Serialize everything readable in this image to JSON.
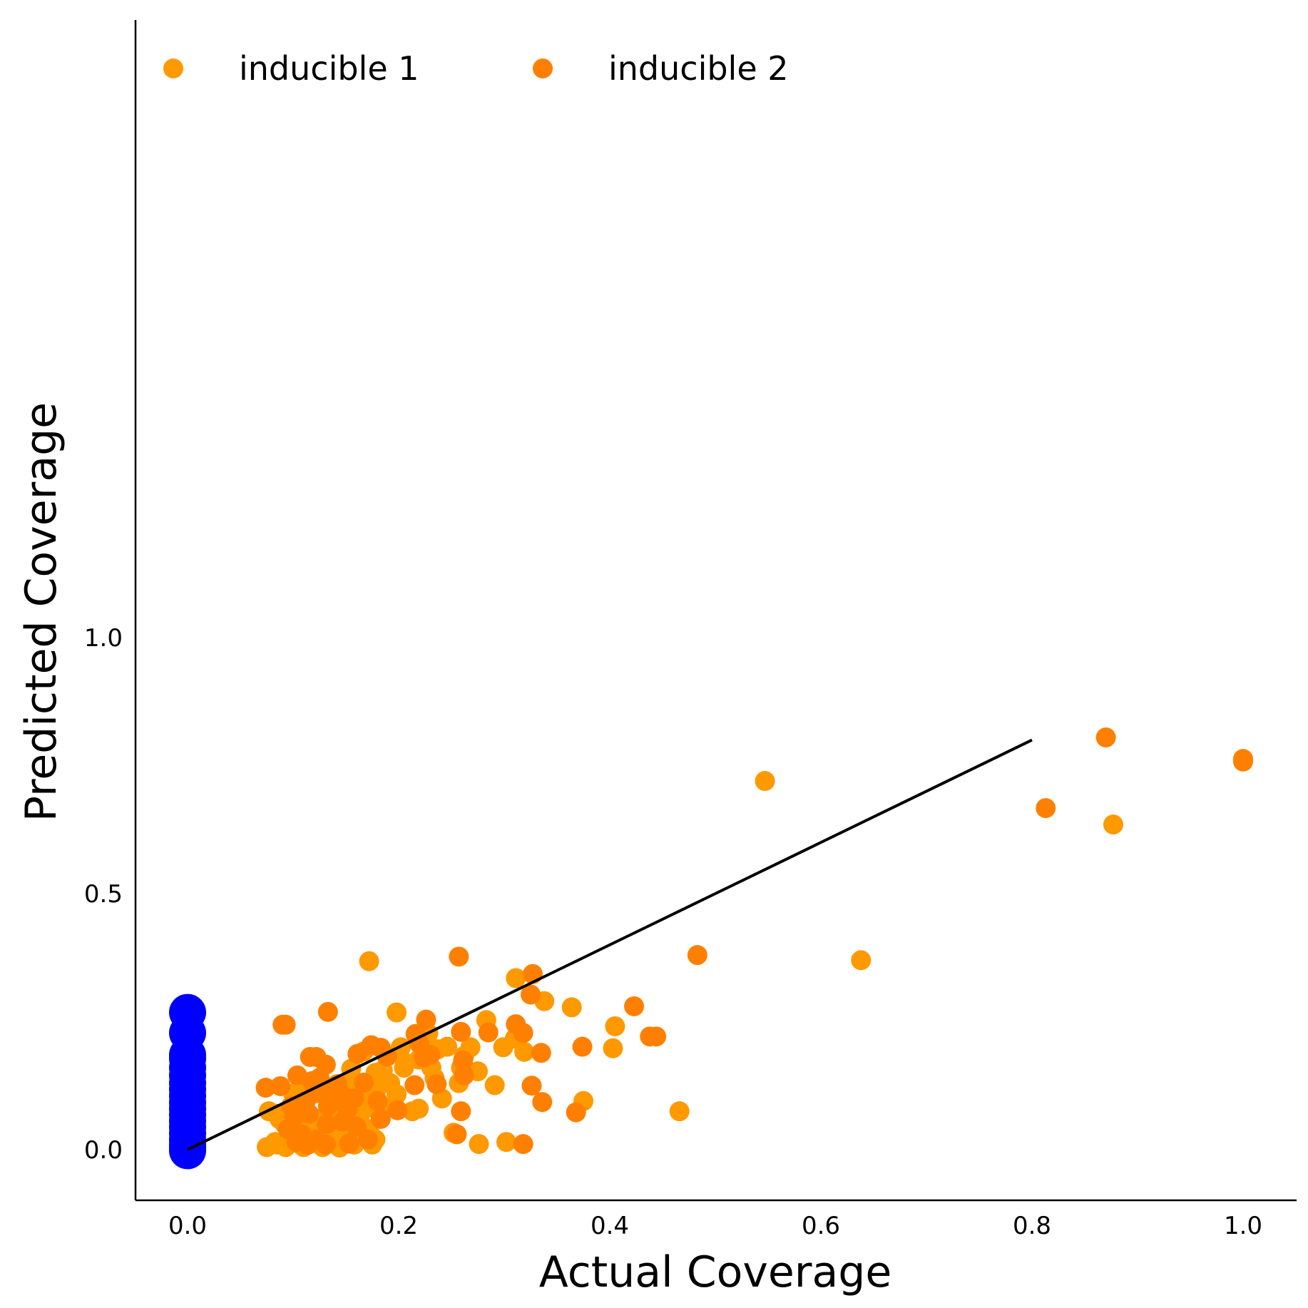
{
  "chart_data": {
    "type": "scatter",
    "title": "",
    "xlabel": "Actual Coverage",
    "ylabel": "Predicted Coverage",
    "xlim": [
      -0.05,
      1.05
    ],
    "ylim": [
      -0.05,
      1.1
    ],
    "x_ticks": [
      0.0,
      0.2,
      0.4,
      0.6,
      0.8,
      1.0
    ],
    "x_tick_labels": [
      "0.0",
      "0.2",
      "0.4",
      "0.6",
      "0.8",
      "1.0"
    ],
    "y_ticks": [
      0.0,
      0.5,
      1.0
    ],
    "y_tick_labels": [
      "0.0",
      "0.5",
      "1.0"
    ],
    "grid": false,
    "legend_position": "top-left",
    "reference_line": {
      "x": [
        0.0,
        0.8
      ],
      "y": [
        0.0,
        0.8
      ],
      "color": "#000000"
    },
    "series": [
      {
        "name": "inducible 1",
        "color": "#FF9900",
        "points": [
          [
            0.547,
            0.72
          ],
          [
            0.638,
            0.37
          ],
          [
            0.877,
            0.635
          ],
          [
            0.172,
            0.368
          ],
          [
            0.198,
            0.268
          ],
          [
            0.311,
            0.335
          ],
          [
            0.338,
            0.29
          ],
          [
            0.364,
            0.278
          ],
          [
            0.283,
            0.253
          ],
          [
            0.405,
            0.241
          ],
          [
            0.31,
            0.217
          ],
          [
            0.299,
            0.2
          ],
          [
            0.319,
            0.191
          ],
          [
            0.228,
            0.227
          ],
          [
            0.202,
            0.2
          ],
          [
            0.403,
            0.198
          ],
          [
            0.246,
            0.201
          ],
          [
            0.237,
            0.196
          ],
          [
            0.268,
            0.2
          ],
          [
            0.262,
            0.183
          ],
          [
            0.219,
            0.176
          ],
          [
            0.206,
            0.17
          ],
          [
            0.231,
            0.16
          ],
          [
            0.259,
            0.16
          ],
          [
            0.167,
            0.192
          ],
          [
            0.155,
            0.158
          ],
          [
            0.178,
            0.15
          ],
          [
            0.234,
            0.14
          ],
          [
            0.275,
            0.153
          ],
          [
            0.291,
            0.126
          ],
          [
            0.257,
            0.13
          ],
          [
            0.192,
            0.13
          ],
          [
            0.18,
            0.121
          ],
          [
            0.241,
            0.1
          ],
          [
            0.198,
            0.108
          ],
          [
            0.219,
            0.08
          ],
          [
            0.151,
            0.12
          ],
          [
            0.137,
            0.1
          ],
          [
            0.173,
            0.102
          ],
          [
            0.163,
            0.09
          ],
          [
            0.134,
            0.08
          ],
          [
            0.178,
            0.08
          ],
          [
            0.148,
            0.07
          ],
          [
            0.16,
            0.06
          ],
          [
            0.129,
            0.05
          ],
          [
            0.172,
            0.04
          ],
          [
            0.109,
            0.1
          ],
          [
            0.123,
            0.06
          ],
          [
            0.105,
            0.045
          ],
          [
            0.116,
            0.04
          ],
          [
            0.084,
            0.07
          ],
          [
            0.092,
            0.05
          ],
          [
            0.097,
            0.03
          ],
          [
            0.143,
            0.025
          ],
          [
            0.165,
            0.032
          ],
          [
            0.178,
            0.02
          ],
          [
            0.12,
            0.02
          ],
          [
            0.137,
            0.015
          ],
          [
            0.175,
            0.01
          ],
          [
            0.085,
            0.01
          ],
          [
            0.094,
            0.01
          ],
          [
            0.107,
            0.01
          ],
          [
            0.128,
            0.005
          ],
          [
            0.144,
            0.004
          ],
          [
            0.158,
            0.01
          ],
          [
            0.375,
            0.095
          ],
          [
            0.466,
            0.075
          ],
          [
            0.252,
            0.033
          ],
          [
            0.276,
            0.011
          ],
          [
            0.302,
            0.015
          ],
          [
            0.083,
            0.015
          ],
          [
            0.075,
            0.005
          ],
          [
            0.093,
            0.005
          ],
          [
            0.11,
            0.005
          ],
          [
            0.125,
            0.01
          ],
          [
            0.137,
            0.03
          ],
          [
            0.152,
            0.04
          ],
          [
            0.087,
            0.06
          ],
          [
            0.077,
            0.075
          ],
          [
            0.115,
            0.13
          ],
          [
            0.1,
            0.11
          ],
          [
            0.141,
            0.06
          ],
          [
            0.163,
            0.065
          ],
          [
            0.182,
            0.07
          ],
          [
            0.195,
            0.085
          ],
          [
            0.213,
            0.075
          ],
          [
            0.205,
            0.16
          ],
          [
            0.185,
            0.155
          ],
          [
            0.152,
            0.13
          ],
          [
            0.171,
            0.115
          ]
        ]
      },
      {
        "name": "inducible 2",
        "color": "#FF8000",
        "points": [
          [
            0.87,
            0.805
          ],
          [
            1.0,
            0.763
          ],
          [
            1.0,
            0.758
          ],
          [
            0.813,
            0.667
          ],
          [
            0.483,
            0.38
          ],
          [
            0.257,
            0.377
          ],
          [
            0.327,
            0.343
          ],
          [
            0.325,
            0.303
          ],
          [
            0.423,
            0.28
          ],
          [
            0.133,
            0.269
          ],
          [
            0.093,
            0.244
          ],
          [
            0.09,
            0.244
          ],
          [
            0.226,
            0.254
          ],
          [
            0.311,
            0.245
          ],
          [
            0.318,
            0.228
          ],
          [
            0.438,
            0.221
          ],
          [
            0.444,
            0.221
          ],
          [
            0.216,
            0.226
          ],
          [
            0.259,
            0.23
          ],
          [
            0.285,
            0.229
          ],
          [
            0.374,
            0.201
          ],
          [
            0.335,
            0.189
          ],
          [
            0.174,
            0.204
          ],
          [
            0.183,
            0.199
          ],
          [
            0.22,
            0.206
          ],
          [
            0.224,
            0.18
          ],
          [
            0.23,
            0.185
          ],
          [
            0.261,
            0.174
          ],
          [
            0.116,
            0.181
          ],
          [
            0.122,
            0.181
          ],
          [
            0.131,
            0.166
          ],
          [
            0.161,
            0.187
          ],
          [
            0.189,
            0.182
          ],
          [
            0.262,
            0.145
          ],
          [
            0.236,
            0.128
          ],
          [
            0.215,
            0.126
          ],
          [
            0.167,
            0.131
          ],
          [
            0.142,
            0.128
          ],
          [
            0.118,
            0.134
          ],
          [
            0.104,
            0.145
          ],
          [
            0.074,
            0.121
          ],
          [
            0.088,
            0.124
          ],
          [
            0.326,
            0.125
          ],
          [
            0.336,
            0.093
          ],
          [
            0.259,
            0.075
          ],
          [
            0.368,
            0.073
          ],
          [
            0.199,
            0.077
          ],
          [
            0.183,
            0.06
          ],
          [
            0.152,
            0.08
          ],
          [
            0.14,
            0.095
          ],
          [
            0.126,
            0.11
          ],
          [
            0.115,
            0.07
          ],
          [
            0.101,
            0.065
          ],
          [
            0.095,
            0.04
          ],
          [
            0.108,
            0.03
          ],
          [
            0.122,
            0.02
          ],
          [
            0.132,
            0.05
          ],
          [
            0.147,
            0.055
          ],
          [
            0.16,
            0.045
          ],
          [
            0.171,
            0.02
          ],
          [
            0.103,
            0.015
          ],
          [
            0.114,
            0.01
          ],
          [
            0.131,
            0.01
          ],
          [
            0.153,
            0.012
          ],
          [
            0.318,
            0.011
          ],
          [
            0.255,
            0.03
          ],
          [
            0.112,
            0.095
          ],
          [
            0.125,
            0.14
          ],
          [
            0.139,
            0.12
          ],
          [
            0.147,
            0.105
          ],
          [
            0.158,
            0.1
          ],
          [
            0.133,
            0.085
          ],
          [
            0.098,
            0.085
          ],
          [
            0.12,
            0.11
          ],
          [
            0.18,
            0.095
          ]
        ]
      },
      {
        "name": "",
        "color": "#0000FF",
        "marker": "large",
        "points": [
          [
            0.0,
            0.268
          ],
          [
            0.0,
            0.228
          ],
          [
            0.0,
            0.185
          ],
          [
            0.0,
            0.178
          ],
          [
            0.0,
            0.16
          ],
          [
            0.0,
            0.145
          ],
          [
            0.0,
            0.13
          ],
          [
            0.0,
            0.118
          ],
          [
            0.0,
            0.105
          ],
          [
            0.0,
            0.092
          ],
          [
            0.0,
            0.08
          ],
          [
            0.0,
            0.068
          ],
          [
            0.0,
            0.056
          ],
          [
            0.0,
            0.044
          ],
          [
            0.0,
            0.032
          ],
          [
            0.0,
            0.02
          ],
          [
            0.0,
            0.01
          ],
          [
            0.0,
            0.003
          ],
          [
            0.0,
            -0.002
          ]
        ]
      }
    ]
  }
}
